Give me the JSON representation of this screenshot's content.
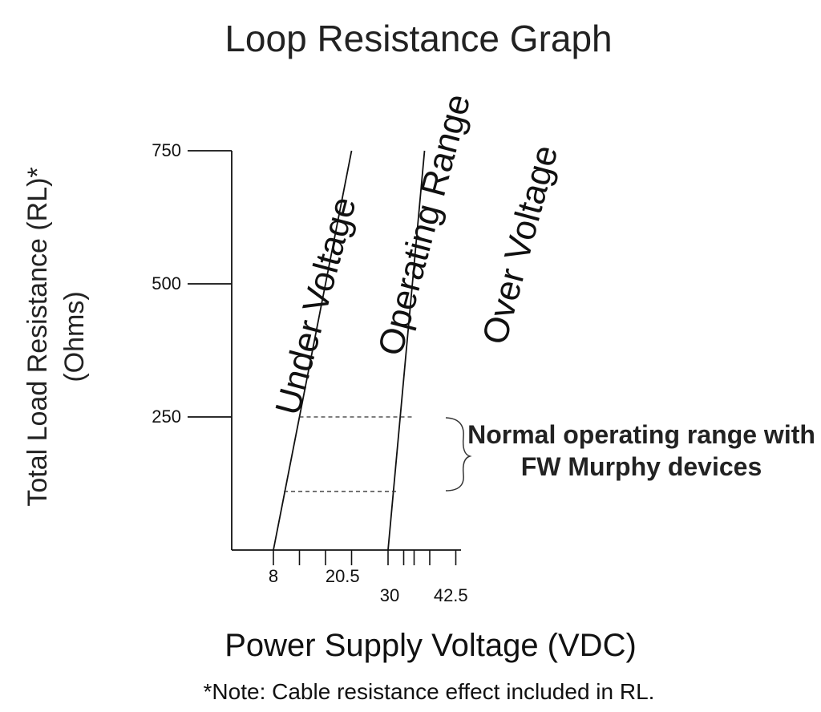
{
  "chart_data": {
    "type": "line",
    "title": "Loop Resistance Graph",
    "xlabel": "Power Supply Voltage (VDC)",
    "ylabel_line1": "Total Load Resistance (RL)*",
    "ylabel_line2": "(Ohms)",
    "footnote": "*Note: Cable resistance effect included in RL.",
    "x_ticks_labeled": [
      "8",
      "20.5",
      "30",
      "42.5"
    ],
    "y_ticks": [
      {
        "value": 750,
        "label": "750"
      },
      {
        "value": 500,
        "label": "500"
      },
      {
        "value": 250,
        "label": "250"
      }
    ],
    "x_minor_ticks": [
      8,
      13,
      18,
      23,
      30,
      33,
      35,
      38,
      43
    ],
    "ylim": [
      0,
      750
    ],
    "xlim": [
      1.5,
      44
    ],
    "series": [
      {
        "points": [
          [
            8,
            0
          ],
          [
            23,
            750
          ]
        ]
      },
      {
        "points": [
          [
            30,
            0
          ],
          [
            37,
            750
          ]
        ]
      }
    ],
    "reference_levels": [
      {
        "y": 250,
        "x_from": 13,
        "x_to": 35
      },
      {
        "y": 110,
        "x_from": 10,
        "x_to": 32
      }
    ],
    "region_labels": [
      "Under Voltage",
      "Operating Range",
      "Over Voltage"
    ],
    "annotation": {
      "text_line1": "Normal operating range with",
      "text_line2": "FW Murphy devices"
    }
  }
}
